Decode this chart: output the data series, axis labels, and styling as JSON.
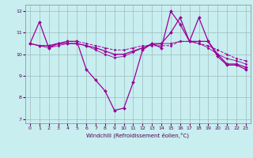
{
  "background_color": "#c8eef0",
  "line_color": "#990099",
  "grid_color": "#9bbcbd",
  "xlabel": "Windchill (Refroidissement éolien,°C)",
  "xlim": [
    -0.5,
    23.5
  ],
  "ylim": [
    6.8,
    12.3
  ],
  "yticks": [
    7,
    8,
    9,
    10,
    11,
    12
  ],
  "xticks": [
    0,
    1,
    2,
    3,
    4,
    5,
    6,
    7,
    8,
    9,
    10,
    11,
    12,
    13,
    14,
    15,
    16,
    17,
    18,
    19,
    20,
    21,
    22,
    23
  ],
  "series": [
    {
      "x": [
        0,
        1,
        2,
        3,
        4,
        5,
        6,
        7,
        8,
        9,
        10,
        11,
        12,
        13,
        14,
        15,
        16,
        17,
        18,
        19,
        20,
        21,
        22,
        23
      ],
      "y": [
        10.5,
        11.5,
        10.3,
        10.5,
        10.6,
        10.6,
        9.3,
        8.8,
        8.3,
        7.4,
        7.5,
        8.7,
        10.2,
        10.5,
        10.3,
        12.0,
        11.4,
        10.6,
        10.6,
        10.6,
        9.9,
        9.5,
        9.5,
        9.3
      ],
      "style": "-",
      "marker": "D",
      "markersize": 2.0,
      "linewidth": 0.9
    },
    {
      "x": [
        0,
        1,
        2,
        3,
        4,
        5,
        6,
        7,
        8,
        9,
        10,
        11,
        12,
        13,
        14,
        15,
        16,
        17,
        18,
        19,
        20,
        21,
        22,
        23
      ],
      "y": [
        10.5,
        10.4,
        10.4,
        10.5,
        10.6,
        10.6,
        10.5,
        10.4,
        10.3,
        10.2,
        10.2,
        10.3,
        10.4,
        10.4,
        10.4,
        10.4,
        10.6,
        10.6,
        10.5,
        10.4,
        10.2,
        10.0,
        9.8,
        9.7
      ],
      "style": "--",
      "marker": "D",
      "markersize": 1.5,
      "linewidth": 0.7
    },
    {
      "x": [
        0,
        1,
        2,
        3,
        4,
        5,
        6,
        7,
        8,
        9,
        10,
        11,
        12,
        13,
        14,
        15,
        16,
        17,
        18,
        19,
        20,
        21,
        22,
        23
      ],
      "y": [
        10.5,
        10.4,
        10.3,
        10.4,
        10.5,
        10.5,
        10.4,
        10.2,
        10.0,
        9.85,
        9.9,
        10.1,
        10.3,
        10.5,
        10.5,
        10.5,
        10.6,
        10.6,
        10.5,
        10.3,
        10.0,
        9.8,
        9.7,
        9.55
      ],
      "style": "-",
      "marker": "D",
      "markersize": 1.5,
      "linewidth": 0.6
    },
    {
      "x": [
        0,
        1,
        2,
        3,
        4,
        5,
        6,
        7,
        8,
        9,
        10,
        11,
        12,
        13,
        14,
        15,
        16,
        17,
        18,
        19,
        20,
        21,
        22,
        23
      ],
      "y": [
        10.5,
        10.4,
        10.4,
        10.5,
        10.5,
        10.5,
        10.4,
        10.3,
        10.15,
        10.0,
        10.0,
        10.15,
        10.3,
        10.45,
        10.5,
        11.0,
        11.7,
        10.6,
        11.7,
        10.6,
        10.0,
        9.55,
        9.55,
        9.4
      ],
      "style": "-",
      "marker": "D",
      "markersize": 2.0,
      "linewidth": 0.9
    }
  ]
}
